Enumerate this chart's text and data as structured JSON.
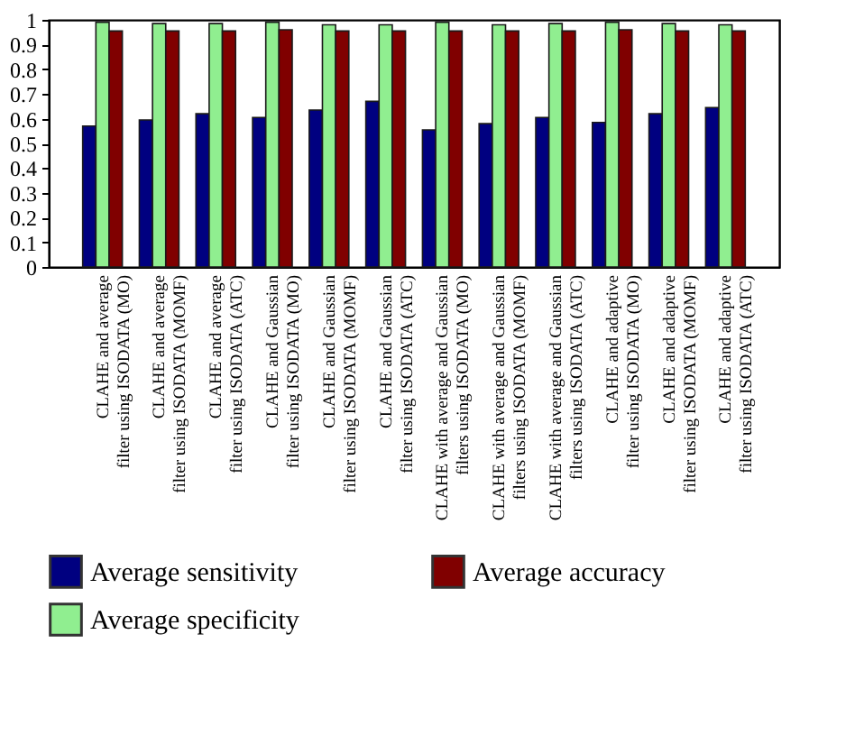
{
  "chart_data": {
    "type": "bar",
    "categories": [
      "CLAHE and average\nfilter using ISODATA (MO)",
      "CLAHE and average\nfilter using ISODATA (MOMF)",
      "CLAHE and average\nfilter using ISODATA (ATC)",
      "CLAHE and Gaussian\nfilter using ISODATA (MO)",
      "CLAHE and Gaussian\nfilter using ISODATA (MOMF)",
      "CLAHE and Gaussian\nfilter using ISODATA (ATC)",
      "CLAHE with average and Gaussian\nfilters using ISODATA (MO)",
      "CLAHE with average and Gaussian\nfilters using ISODATA (MOMF)",
      "CLAHE with average and Gaussian\nfilters using ISODATA (ATC)",
      "CLAHE and adaptive\nfilter using ISODATA (MO)",
      "CLAHE and adaptive\nfilter using ISODATA (MOMF)",
      "CLAHE and adaptive\nfilter using ISODATA (ATC)"
    ],
    "series": [
      {
        "name": "Average sensitivity",
        "color": "#000080",
        "values": [
          0.57,
          0.595,
          0.62,
          0.605,
          0.635,
          0.67,
          0.555,
          0.58,
          0.605,
          0.585,
          0.62,
          0.645
        ]
      },
      {
        "name": "Average specificity",
        "color": "#90ee90",
        "values": [
          0.99,
          0.985,
          0.985,
          0.99,
          0.98,
          0.98,
          0.99,
          0.98,
          0.985,
          0.99,
          0.985,
          0.98
        ]
      },
      {
        "name": "Average accuracy",
        "color": "#800000",
        "values": [
          0.955,
          0.955,
          0.955,
          0.96,
          0.955,
          0.955,
          0.955,
          0.955,
          0.955,
          0.96,
          0.955,
          0.955
        ]
      }
    ],
    "ylim": [
      0,
      1
    ],
    "yticks": [
      0,
      0.1,
      0.2,
      0.3,
      0.4,
      0.5,
      0.6,
      0.7,
      0.8,
      0.9,
      1
    ],
    "grid": false,
    "legend": "bottom"
  }
}
